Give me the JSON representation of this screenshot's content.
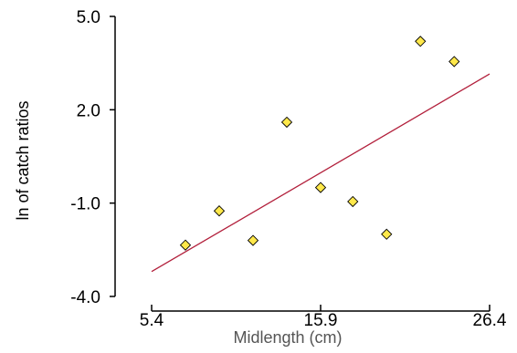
{
  "colors": {
    "point_fill": "#ffe84a",
    "point_stroke": "#000000",
    "trend_line": "#b21f3b",
    "axis": "#000000"
  },
  "chart_data": {
    "type": "scatter",
    "xlabel": "Midlength (cm)",
    "ylabel": "ln of catch ratios",
    "xlim": [
      5.4,
      26.4
    ],
    "ylim": [
      -4.0,
      5.0
    ],
    "x_ticks": [
      "5.4",
      "15.9",
      "26.4"
    ],
    "y_ticks": [
      "5.0",
      "2.0",
      "-1.0",
      "-4.0"
    ],
    "grid": false,
    "legend": "none",
    "points": [
      {
        "x": 7.5,
        "y": -2.35
      },
      {
        "x": 9.6,
        "y": -1.25
      },
      {
        "x": 11.7,
        "y": -2.2
      },
      {
        "x": 13.8,
        "y": 1.6
      },
      {
        "x": 15.9,
        "y": -0.5
      },
      {
        "x": 17.9,
        "y": -0.95
      },
      {
        "x": 20.0,
        "y": -2.0
      },
      {
        "x": 22.1,
        "y": 4.2
      },
      {
        "x": 24.2,
        "y": 3.55
      }
    ],
    "trend_line": {
      "type": "linear",
      "from": {
        "x": 5.4,
        "y": -3.2
      },
      "to": {
        "x": 26.4,
        "y": 3.15
      }
    }
  }
}
